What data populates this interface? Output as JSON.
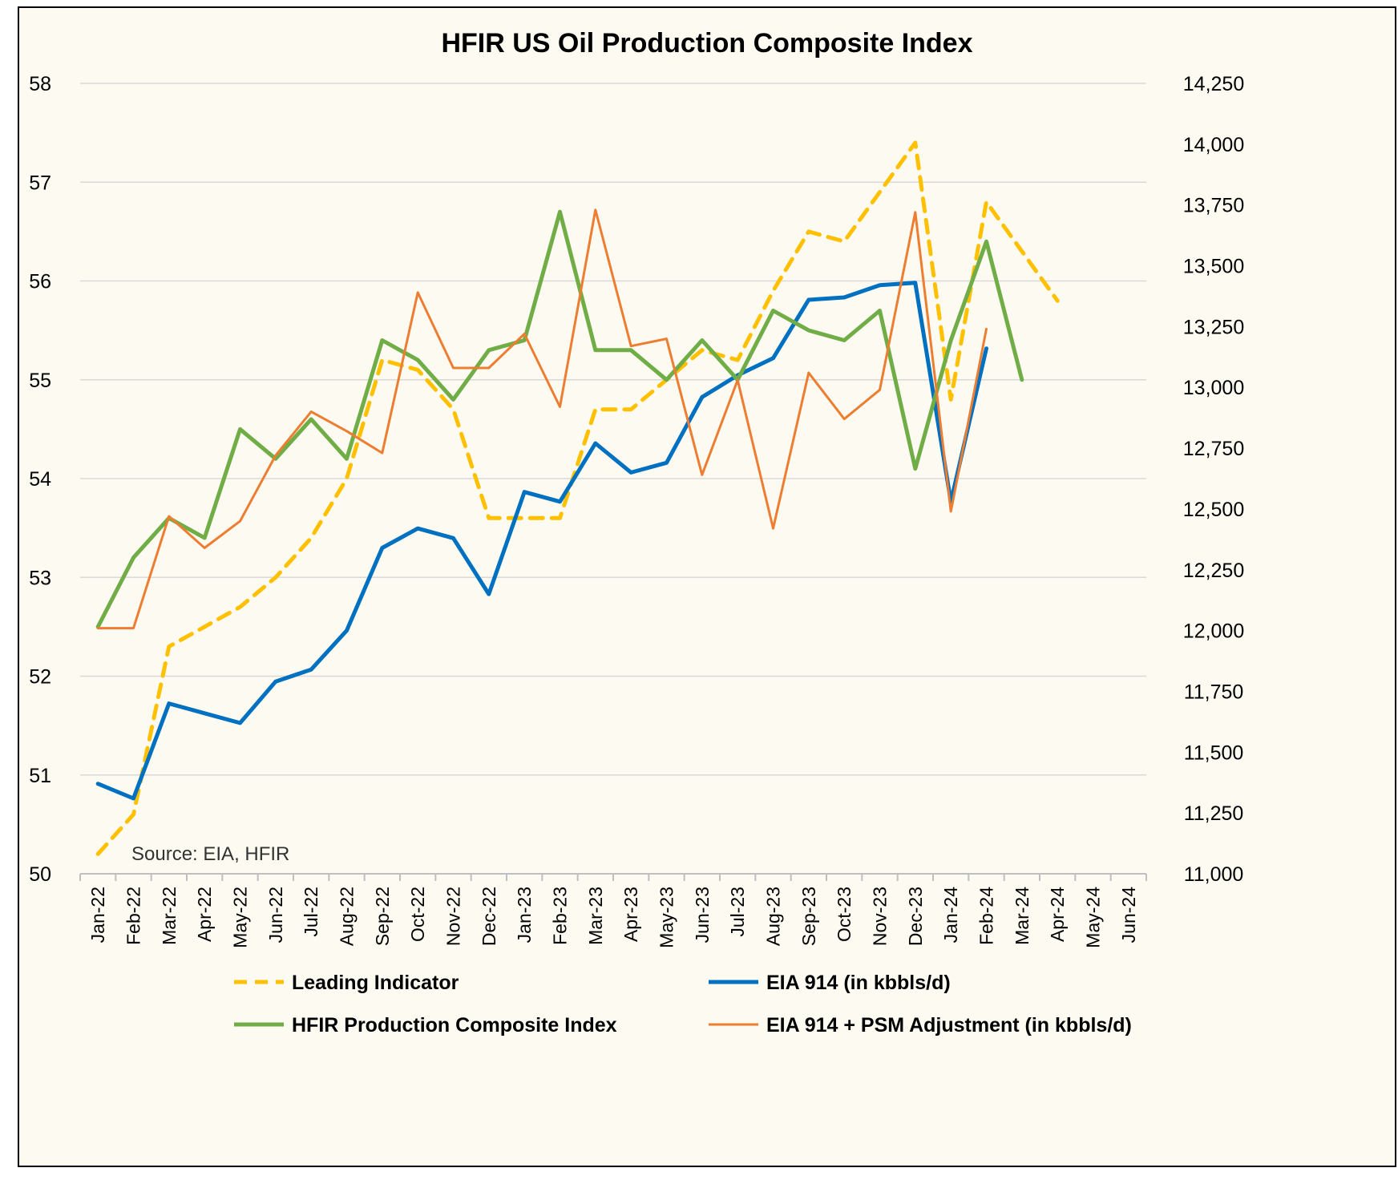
{
  "chart_data": {
    "type": "line",
    "title": "HFIR US Oil Production Composite Index",
    "source_note": "Source: EIA, HFIR",
    "categories": [
      "Jan-22",
      "Feb-22",
      "Mar-22",
      "Apr-22",
      "May-22",
      "Jun-22",
      "Jul-22",
      "Aug-22",
      "Sep-22",
      "Oct-22",
      "Nov-22",
      "Dec-22",
      "Jan-23",
      "Feb-23",
      "Mar-23",
      "Apr-23",
      "May-23",
      "Jun-23",
      "Jul-23",
      "Aug-23",
      "Sep-23",
      "Oct-23",
      "Nov-23",
      "Dec-23",
      "Jan-24",
      "Feb-24",
      "Mar-24",
      "Apr-24",
      "May-24",
      "Jun-24"
    ],
    "left_axis": {
      "min": 50,
      "max": 58,
      "step": 1,
      "ticks": [
        "50",
        "51",
        "52",
        "53",
        "54",
        "55",
        "56",
        "57",
        "58"
      ]
    },
    "right_axis": {
      "min": 11000,
      "max": 14250,
      "step": 250,
      "ticks": [
        "11,000",
        "11,250",
        "11,500",
        "11,750",
        "12,000",
        "12,250",
        "12,500",
        "12,750",
        "13,000",
        "13,250",
        "13,500",
        "13,750",
        "14,000",
        "14,250"
      ]
    },
    "grid": "horizontal",
    "legend_position": "bottom",
    "series": [
      {
        "name": "Leading Indicator",
        "axis": "left",
        "color": "#FFC000",
        "style": "dashed",
        "values": [
          50.2,
          50.6,
          52.3,
          52.5,
          52.7,
          53.0,
          53.4,
          54.0,
          55.2,
          55.1,
          54.7,
          53.6,
          53.6,
          53.6,
          54.7,
          54.7,
          55.0,
          55.3,
          55.2,
          55.9,
          56.5,
          56.4,
          56.9,
          57.4,
          54.8,
          56.8,
          56.3,
          55.8,
          null,
          null
        ]
      },
      {
        "name": "EIA 914 (in kbbls/d)",
        "axis": "right",
        "color": "#0070C0",
        "style": "solid",
        "values": [
          11370,
          11310,
          11700,
          11660,
          11620,
          11790,
          11840,
          12000,
          12340,
          12420,
          12380,
          12150,
          12570,
          12530,
          12770,
          12650,
          12690,
          12960,
          13050,
          13120,
          13360,
          13370,
          13420,
          13430,
          12530,
          13160,
          null,
          null,
          null,
          null
        ]
      },
      {
        "name": "HFIR Production Composite Index",
        "axis": "left",
        "color": "#70AD47",
        "style": "solid",
        "values": [
          52.5,
          53.2,
          53.6,
          53.4,
          54.5,
          54.2,
          54.6,
          54.2,
          55.4,
          55.2,
          54.8,
          55.3,
          55.4,
          56.7,
          55.3,
          55.3,
          55.0,
          55.4,
          55.0,
          55.7,
          55.5,
          55.4,
          55.7,
          54.1,
          55.4,
          56.4,
          55.0,
          null,
          null,
          null
        ]
      },
      {
        "name": "EIA 914 + PSM Adjustment (in kbbls/d)",
        "axis": "right",
        "color": "#ED7D31",
        "style": "solid",
        "values": [
          12010,
          12010,
          12470,
          12340,
          12450,
          12720,
          12900,
          12820,
          12730,
          13390,
          13080,
          13080,
          13220,
          12920,
          13730,
          13170,
          13200,
          12640,
          13030,
          12420,
          13060,
          12870,
          12990,
          13720,
          12490,
          13240,
          null,
          null,
          null,
          null
        ]
      }
    ]
  }
}
